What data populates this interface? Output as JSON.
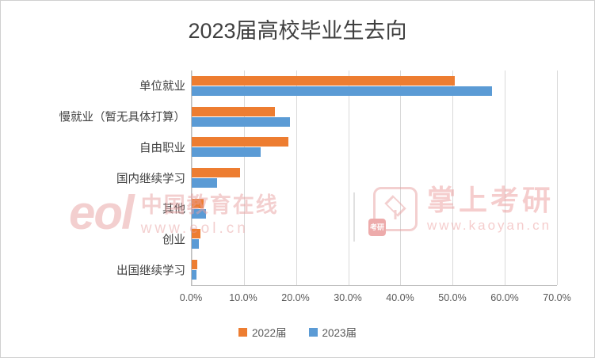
{
  "title": "2023届高校毕业生去向",
  "chart_data": {
    "type": "bar",
    "orientation": "horizontal",
    "title": "2023届高校毕业生去向",
    "categories": [
      "单位就业",
      "慢就业（暂无具体打算）",
      "自由职业",
      "国内继续学习",
      "其他",
      "创业",
      "出国继续学习"
    ],
    "series": [
      {
        "name": "2022届",
        "color": "#ED7D31",
        "values": [
          50.4,
          15.9,
          18.6,
          9.3,
          2.3,
          1.7,
          1.0
        ]
      },
      {
        "name": "2023届",
        "color": "#5B9BD5",
        "values": [
          57.6,
          18.9,
          13.2,
          4.9,
          2.7,
          1.3,
          0.9
        ]
      }
    ],
    "xlim": [
      0,
      70
    ],
    "x_ticks": [
      "0.0%",
      "10.0%",
      "20.0%",
      "30.0%",
      "40.0%",
      "50.0%",
      "60.0%",
      "70.0%"
    ],
    "grid": true,
    "legend_position": "bottom"
  },
  "watermark_left": {
    "logo_text": "eol",
    "brand": "中国教育在线",
    "url": "www.eol.cn"
  },
  "watermark_right": {
    "badge": "考研",
    "brand": "掌上考研",
    "url": "www.kaoyan.cn"
  }
}
